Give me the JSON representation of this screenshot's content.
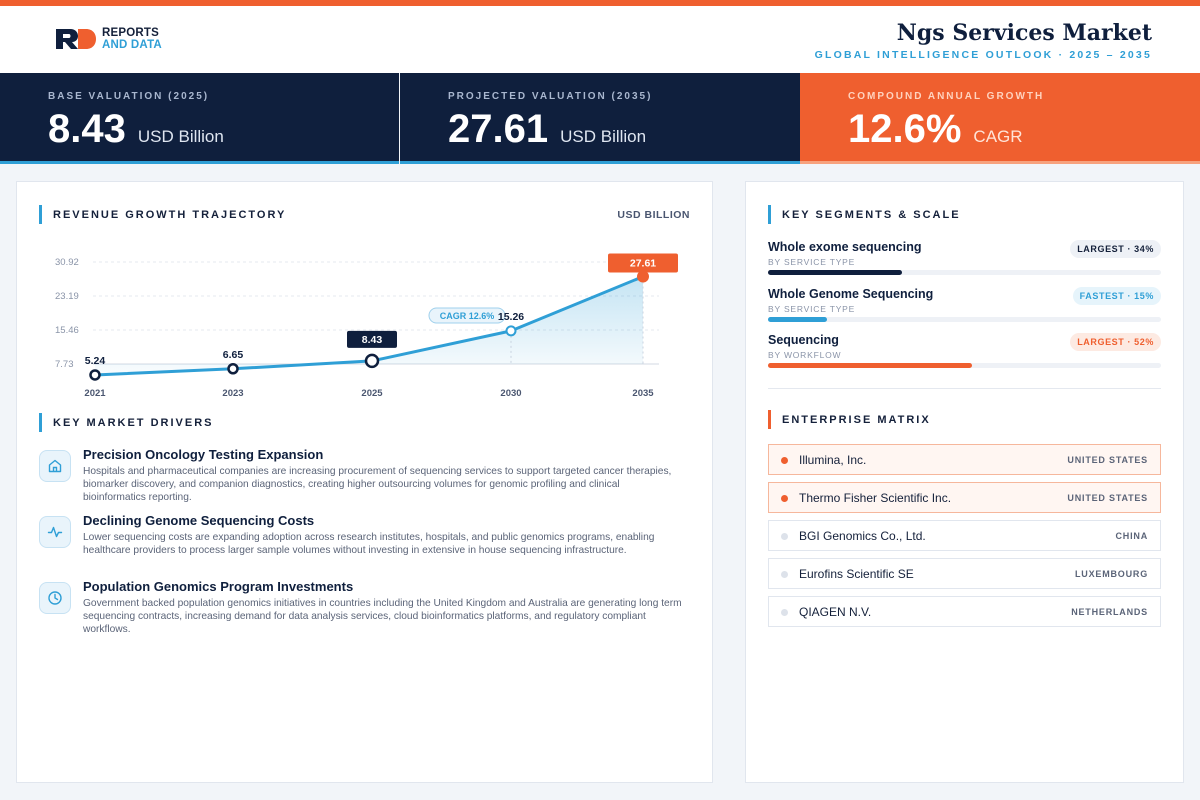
{
  "header": {
    "logo_line1": "REPORTS",
    "logo_line2": "AND DATA",
    "title": "Ngs Services Market",
    "subtitle": "GLOBAL INTELLIGENCE OUTLOOK  ·  2025 – 2035"
  },
  "kpis": [
    {
      "label": "BASE VALUATION (2025)",
      "value": "8.43",
      "unit": "USD Billion"
    },
    {
      "label": "PROJECTED VALUATION (2035)",
      "value": "27.61",
      "unit": "USD Billion"
    },
    {
      "label": "COMPOUND ANNUAL GROWTH",
      "value": "12.6%",
      "unit": "CAGR"
    }
  ],
  "revenue": {
    "title": "REVENUE GROWTH TRAJECTORY",
    "unit": "USD BILLION"
  },
  "chart_data": {
    "type": "area",
    "title": "REVENUE GROWTH TRAJECTORY",
    "ylabel": "USD BILLION",
    "categories": [
      "2021",
      "2023",
      "2025",
      "2030",
      "2035"
    ],
    "values": [
      5.24,
      6.65,
      8.43,
      15.26,
      27.61
    ],
    "value_labels": [
      "5.24",
      "6.65",
      "8.43",
      "15.26",
      "27.61"
    ],
    "y_ticks": [
      "30.92",
      "23.19",
      "15.46",
      "7.73"
    ],
    "ylim": [
      7.73,
      30.92
    ],
    "annotation": "CAGR 12.6%",
    "grid": true,
    "colors": {
      "line": "#2f9fd6",
      "highlight_navy": "#0f1f3d",
      "highlight_orange": "#ef5f2f"
    }
  },
  "drivers": {
    "title": "KEY MARKET DRIVERS",
    "items": [
      {
        "icon": "hospital-icon",
        "title": "Precision Oncology Testing Expansion",
        "text": "Hospitals and pharmaceutical companies are increasing procurement of sequencing services to support targeted cancer therapies, biomarker discovery, and companion diagnostics, creating higher outsourcing volumes for genomic profiling and clinical bioinformatics reporting."
      },
      {
        "icon": "pulse-icon",
        "title": "Declining Genome Sequencing Costs",
        "text": "Lower sequencing costs are expanding adoption across research institutes, hospitals, and public genomics programs, enabling healthcare providers to process larger sample volumes without investing in extensive in house sequencing infrastructure."
      },
      {
        "icon": "clock-icon",
        "title": "Population Genomics Program Investments",
        "text": "Government backed population genomics initiatives in countries including the United Kingdom and Australia are generating long term sequencing contracts, increasing demand for data analysis services, cloud bioinformatics platforms, and regulatory compliant workflows."
      }
    ]
  },
  "segments": {
    "title": "KEY SEGMENTS & SCALE",
    "items": [
      {
        "name": "Whole exome sequencing",
        "category": "BY SERVICE TYPE",
        "badge": "LARGEST · 34%",
        "share": 34,
        "color": "#0f1f3d"
      },
      {
        "name": "Whole Genome Sequencing",
        "category": "BY SERVICE TYPE",
        "badge": "FASTEST · 15%",
        "share": 15,
        "color": "#2f9fd6"
      },
      {
        "name": "Sequencing",
        "category": "BY WORKFLOW",
        "badge": "LARGEST · 52%",
        "share": 52,
        "color": "#ef5f2f"
      }
    ]
  },
  "enterprise": {
    "title": "ENTERPRISE MATRIX",
    "items": [
      {
        "name": "Illumina, Inc.",
        "country": "UNITED STATES",
        "highlight": true
      },
      {
        "name": "Thermo Fisher Scientific Inc.",
        "country": "UNITED STATES",
        "highlight": true
      },
      {
        "name": "BGI Genomics Co., Ltd.",
        "country": "CHINA",
        "highlight": false
      },
      {
        "name": "Eurofins Scientific SE",
        "country": "LUXEMBOURG",
        "highlight": false
      },
      {
        "name": "QIAGEN N.V.",
        "country": "NETHERLANDS",
        "highlight": false
      }
    ]
  }
}
